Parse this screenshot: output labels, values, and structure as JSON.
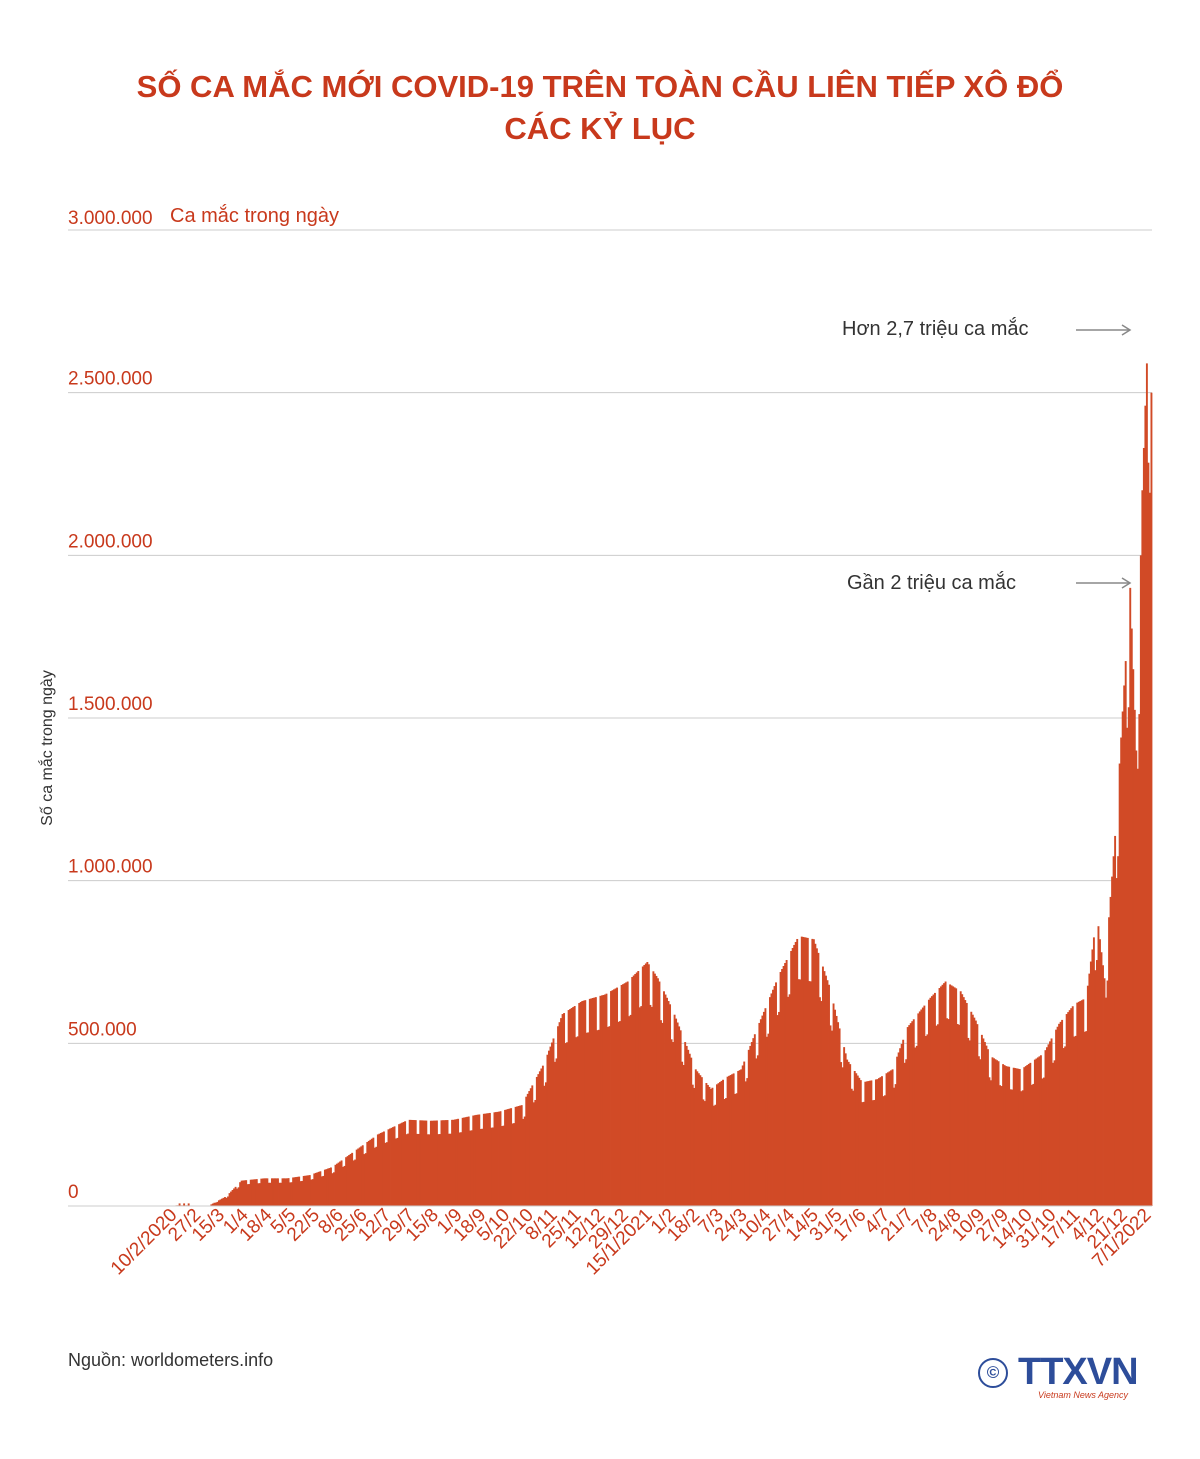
{
  "title_line1": "SỐ CA MẮC MỚI COVID-19 TRÊN TOÀN CẦU LIÊN TIẾP XÔ ĐỔ",
  "title_line2": "CÁC KỶ LỤC",
  "source": "Nguồn: worldometers.info",
  "logo": {
    "text": "TTXVN",
    "subtitle": "Vietnam News Agency",
    "copyright": "©"
  },
  "colors": {
    "accent": "#c8391c",
    "bar": "#d14a26",
    "grid": "#cccccc",
    "logo": "#2d4d9a"
  },
  "chart_data": {
    "type": "bar",
    "ylabel": "Số ca mắc trong ngày",
    "ylabel_top": "Ca mắc trong ngày",
    "ylim": [
      0,
      3000000
    ],
    "yticks": [
      0,
      500000,
      1000000,
      1500000,
      2000000,
      2500000,
      3000000
    ],
    "ytick_labels": [
      "0",
      "500.000",
      "1.000.000",
      "1.500.000",
      "2.000.000",
      "2.500.000",
      "3.000.000"
    ],
    "xtick_labels": [
      "10/2/2020",
      "27/2",
      "15/3",
      "1/4",
      "18/4",
      "5/5",
      "22/5",
      "8/6",
      "25/6",
      "12/7",
      "29/7",
      "15/8",
      "1/9",
      "18/9",
      "5/10",
      "22/10",
      "8/11",
      "25/11",
      "12/12",
      "29/12",
      "15/1/2021",
      "1/2",
      "18/2",
      "7/3",
      "24/3",
      "10/4",
      "27/4",
      "14/5",
      "31/5",
      "17/6",
      "4/7",
      "21/7",
      "7/8",
      "24/8",
      "10/9",
      "27/9",
      "14/10",
      "31/10",
      "17/11",
      "4/12",
      "21/12",
      "7/1/2022"
    ],
    "x_range": [
      "10/2/2020",
      "7/1/2022"
    ],
    "trend_keys": [
      [
        0,
        0
      ],
      [
        10,
        3000
      ],
      [
        16,
        1000
      ],
      [
        30,
        5000
      ],
      [
        40,
        30000
      ],
      [
        50,
        78000
      ],
      [
        65,
        85000
      ],
      [
        80,
        85000
      ],
      [
        95,
        95000
      ],
      [
        110,
        120000
      ],
      [
        125,
        170000
      ],
      [
        140,
        220000
      ],
      [
        160,
        265000
      ],
      [
        175,
        262000
      ],
      [
        190,
        265000
      ],
      [
        205,
        280000
      ],
      [
        220,
        290000
      ],
      [
        235,
        310000
      ],
      [
        250,
        440000
      ],
      [
        262,
        590000
      ],
      [
        275,
        630000
      ],
      [
        290,
        650000
      ],
      [
        305,
        690000
      ],
      [
        318,
        750000
      ],
      [
        325,
        700000
      ],
      [
        335,
        600000
      ],
      [
        350,
        420000
      ],
      [
        360,
        360000
      ],
      [
        370,
        395000
      ],
      [
        380,
        420000
      ],
      [
        390,
        540000
      ],
      [
        405,
        710000
      ],
      [
        418,
        830000
      ],
      [
        428,
        820000
      ],
      [
        438,
        680000
      ],
      [
        450,
        450000
      ],
      [
        460,
        380000
      ],
      [
        470,
        390000
      ],
      [
        480,
        420000
      ],
      [
        490,
        550000
      ],
      [
        505,
        640000
      ],
      [
        515,
        690000
      ],
      [
        525,
        660000
      ],
      [
        535,
        570000
      ],
      [
        545,
        460000
      ],
      [
        555,
        430000
      ],
      [
        565,
        420000
      ],
      [
        580,
        470000
      ],
      [
        590,
        560000
      ],
      [
        600,
        620000
      ],
      [
        608,
        640000
      ],
      [
        615,
        900000
      ],
      [
        620,
        700000
      ],
      [
        628,
        1200000
      ],
      [
        633,
        1600000
      ],
      [
        637,
        1900000
      ],
      [
        641,
        1400000
      ],
      [
        645,
        2200000
      ],
      [
        649,
        2720000
      ],
      [
        651,
        2500000
      ]
    ],
    "notes": "Daily new cases, weekly oscillation; per-day values reconstructed from trend_keys with ~15% weekly dip",
    "annotations": [
      {
        "text": "Hơn 2,7 triệu ca mắc",
        "value": 2720000
      },
      {
        "text": "Gần 2 triệu ca mắc",
        "value": 1940000
      }
    ]
  }
}
